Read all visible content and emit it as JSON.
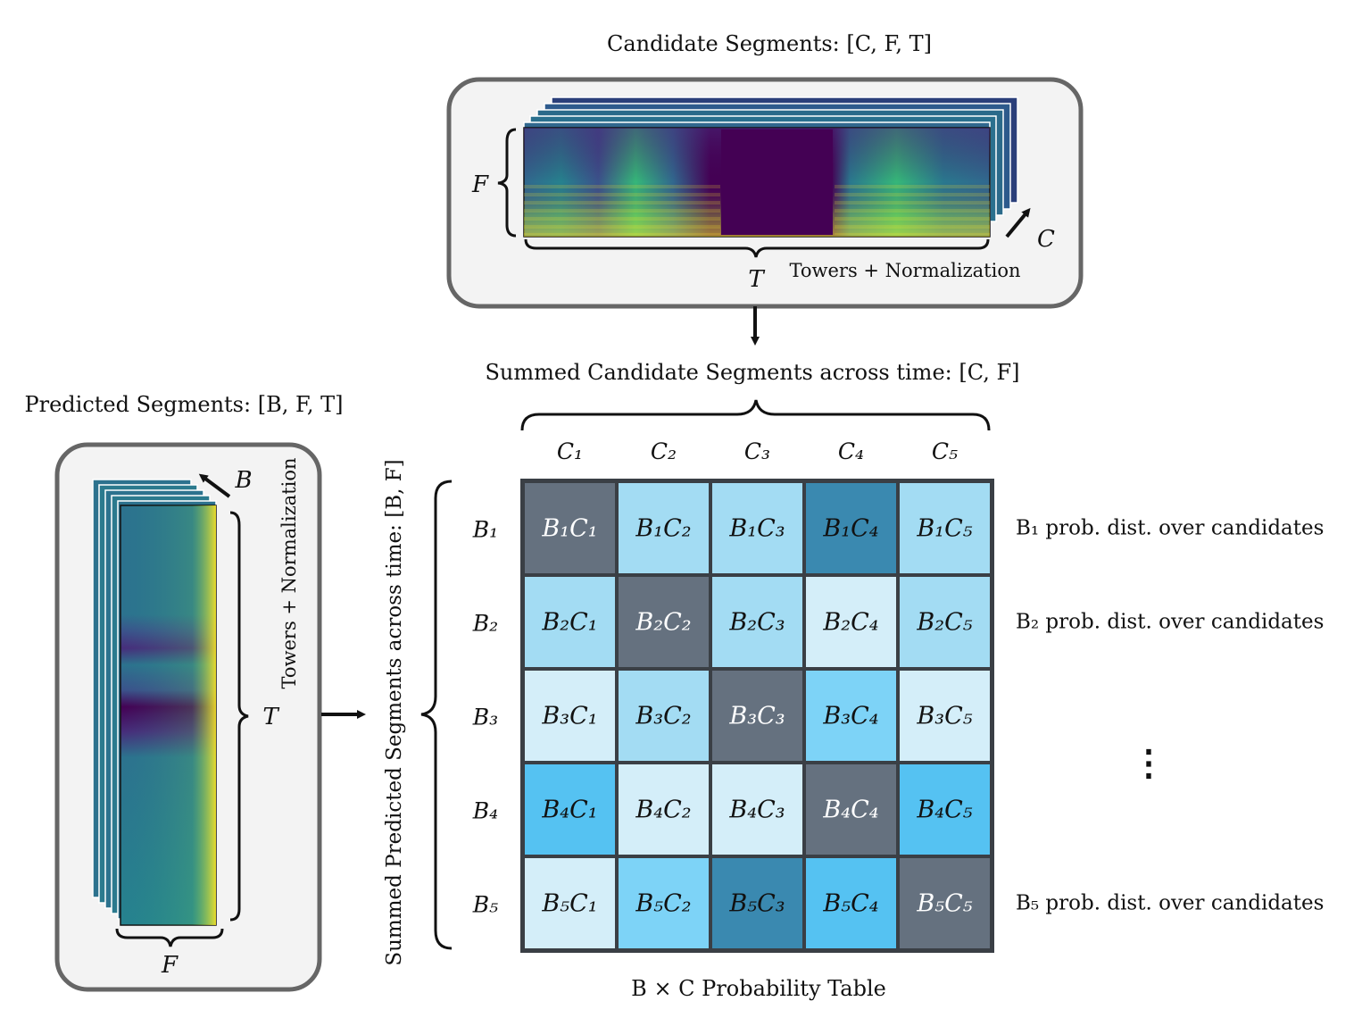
{
  "candidate_panel": {
    "title": "Candidate Segments: [C, F, T]",
    "towers_label": "Towers + Normalization",
    "f_label": "F",
    "t_label": "T",
    "c_label": "C"
  },
  "summed_candidates_label": "Summed Candidate Segments across time: [C, F]",
  "predicted_panel": {
    "title": "Predicted Segments: [B, F, T]",
    "towers_label": "Towers + Normalization",
    "b_label": "B",
    "t_label": "T",
    "f_label": "F"
  },
  "summed_predicted_label": "Summed Predicted Segments across time: [B, F]",
  "table": {
    "caption": "B × C Probability Table",
    "col_headers": [
      "C₁",
      "C₂",
      "C₃",
      "C₄",
      "C₅"
    ],
    "row_headers": [
      "B₁",
      "B₂",
      "B₃",
      "B₄",
      "B₅"
    ],
    "cells": [
      [
        "B₁C₁",
        "B₁C₂",
        "B₁C₃",
        "B₁C₄",
        "B₁C₅"
      ],
      [
        "B₂C₁",
        "B₂C₂",
        "B₂C₃",
        "B₂C₄",
        "B₂C₅"
      ],
      [
        "B₃C₁",
        "B₃C₂",
        "B₃C₃",
        "B₃C₄",
        "B₃C₅"
      ],
      [
        "B₄C₁",
        "B₄C₂",
        "B₄C₃",
        "B₄C₄",
        "B₄C₅"
      ],
      [
        "B₅C₁",
        "B₅C₂",
        "B₅C₃",
        "B₅C₄",
        "B₅C₅"
      ]
    ],
    "cell_colors": [
      [
        "#65717f",
        "#a3dcf3",
        "#a3dcf3",
        "#3a89b0",
        "#a3dcf3"
      ],
      [
        "#a3dcf3",
        "#65717f",
        "#a3dcf3",
        "#d4eef9",
        "#a3dcf3"
      ],
      [
        "#d4eef9",
        "#a3dcf3",
        "#65717f",
        "#7dd3f7",
        "#d4eef9"
      ],
      [
        "#55c2f2",
        "#d4eef9",
        "#d4eef9",
        "#65717f",
        "#55c2f2"
      ],
      [
        "#d4eef9",
        "#7dd3f7",
        "#3a89b0",
        "#55c2f2",
        "#65717f"
      ]
    ],
    "white_text_colors": [
      "#65717f"
    ]
  },
  "row_notes": [
    {
      "row": 0,
      "text": "B₁ prob. dist. over candidates"
    },
    {
      "row": 1,
      "text": "B₂ prob. dist. over candidates"
    },
    {
      "row": 4,
      "text": "B₅ prob. dist. over candidates"
    }
  ],
  "ellipsis": "⋮",
  "colors": {
    "panel_bg": "#f3f3f3",
    "panel_border": "#666666",
    "grid_border": "#3a3f45",
    "spectro_dark": "#440154",
    "spectro_mid": "#2a788e",
    "spectro_bright": "#fde725"
  }
}
